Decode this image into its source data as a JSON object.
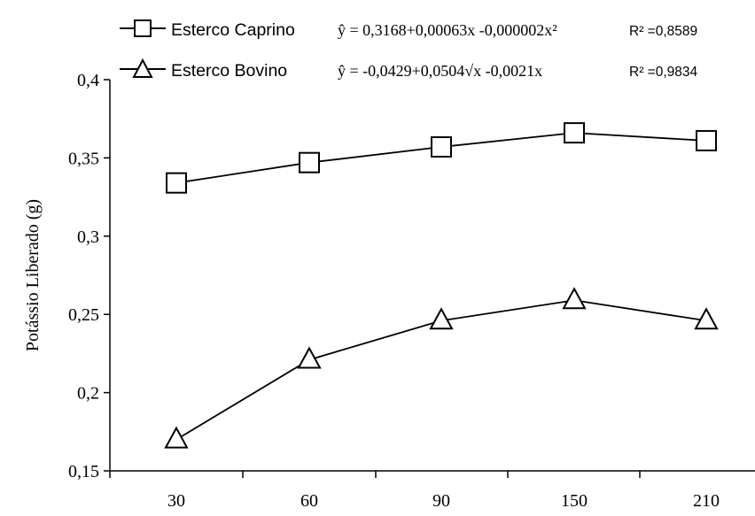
{
  "chart_data": {
    "type": "line",
    "categories": [
      "30",
      "60",
      "90",
      "150",
      "210"
    ],
    "ylabel": "Potássio Liberado (g)",
    "xlabel": "",
    "ylim": [
      0.15,
      0.4
    ],
    "y_ticks": [
      "0,4",
      "0,35",
      "0,3",
      "0,25",
      "0,2",
      "0,15"
    ],
    "grid": false,
    "legend_position": "top",
    "series": [
      {
        "name": "Esterco Caprino",
        "marker": "square",
        "values": [
          0.334,
          0.347,
          0.357,
          0.366,
          0.361
        ],
        "equation": "ŷ = 0,3168+0,00063x -0,000002x²",
        "r2": "R² =0,8589"
      },
      {
        "name": "Esterco Bovino",
        "marker": "triangle",
        "values": [
          0.17,
          0.221,
          0.246,
          0.259,
          0.246
        ],
        "equation": "ŷ = -0,0429+0,0504√x -0,0021x",
        "r2": "R² =0,9834"
      }
    ]
  }
}
